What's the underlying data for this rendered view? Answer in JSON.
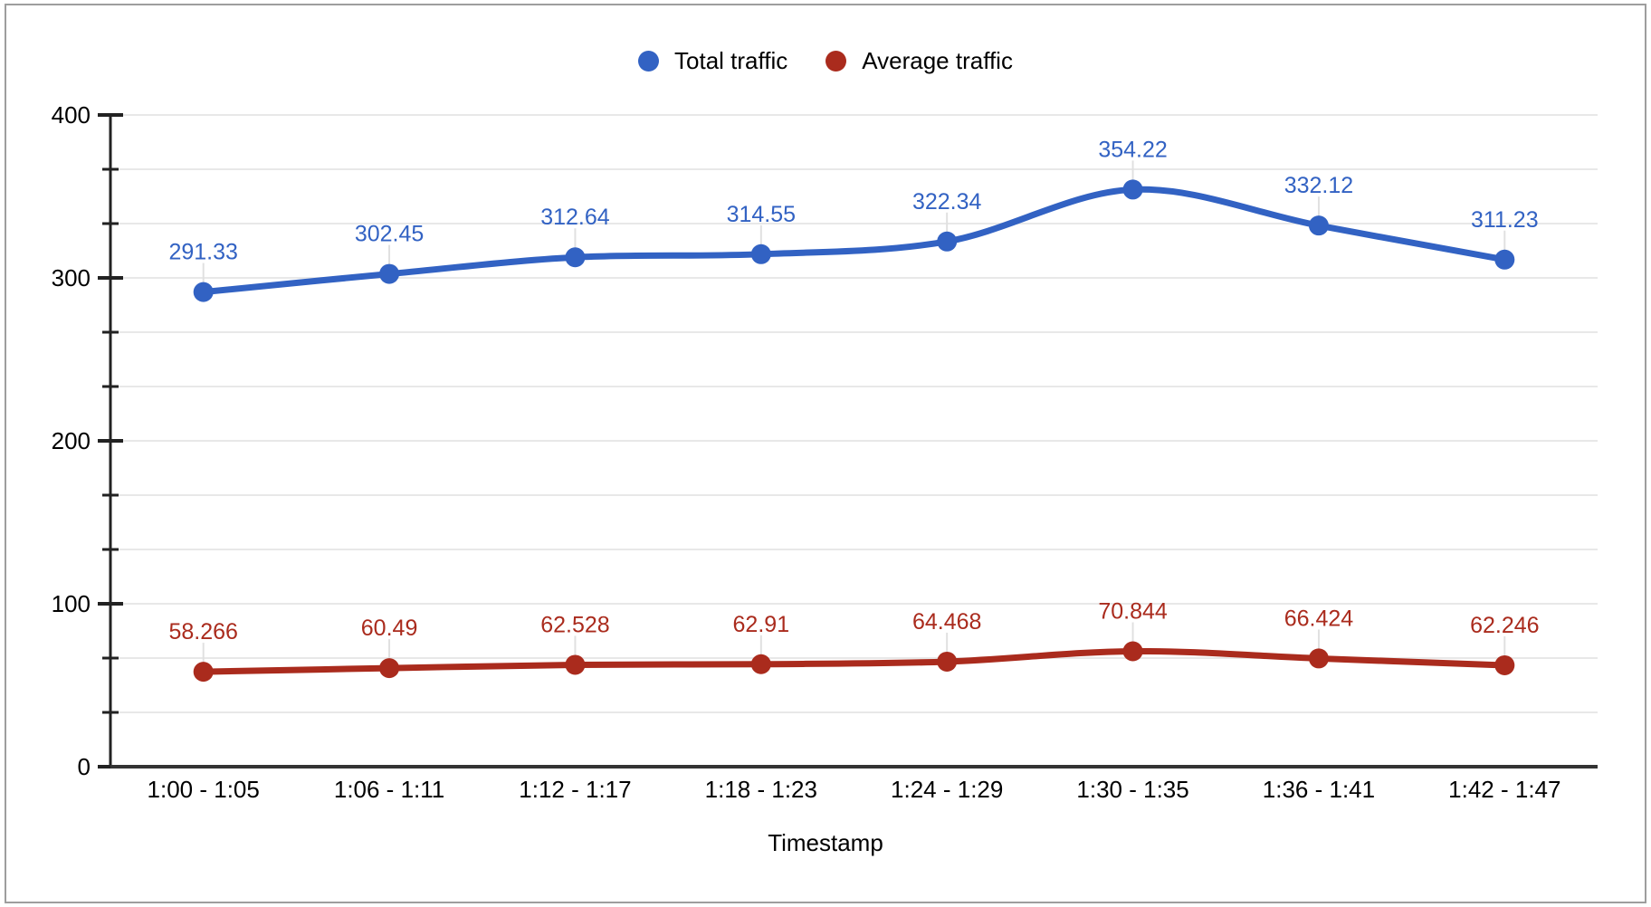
{
  "chart_data": {
    "type": "line",
    "smooth": true,
    "grid": true,
    "legend_position": "top",
    "xlabel": "Timestamp",
    "ylabel": "",
    "ylim": [
      0,
      400
    ],
    "yticks": [
      0,
      100,
      200,
      300,
      400
    ],
    "minor_divisions_per_major": 3,
    "categories": [
      "1:00 - 1:05",
      "1:06 - 1:11",
      "1:12 - 1:17",
      "1:18 - 1:23",
      "1:24 - 1:29",
      "1:30 - 1:35",
      "1:36 - 1:41",
      "1:42 - 1:47"
    ],
    "series": [
      {
        "name": "Total traffic",
        "color": "#3262C3",
        "values": [
          291.33,
          302.45,
          312.64,
          314.55,
          322.34,
          354.22,
          332.12,
          311.23
        ]
      },
      {
        "name": "Average traffic",
        "color": "#AA2B1D",
        "values": [
          58.266,
          60.49,
          62.528,
          62.91,
          64.468,
          70.844,
          66.424,
          62.246
        ]
      }
    ],
    "colors": {
      "gridline": "#E8E8E8",
      "axis": "#333333",
      "tick": "#222222",
      "label_text": "#000000",
      "connector": "#E0E0E0",
      "frame_border": "#9E9E9E",
      "background": "#FFFFFF"
    }
  }
}
